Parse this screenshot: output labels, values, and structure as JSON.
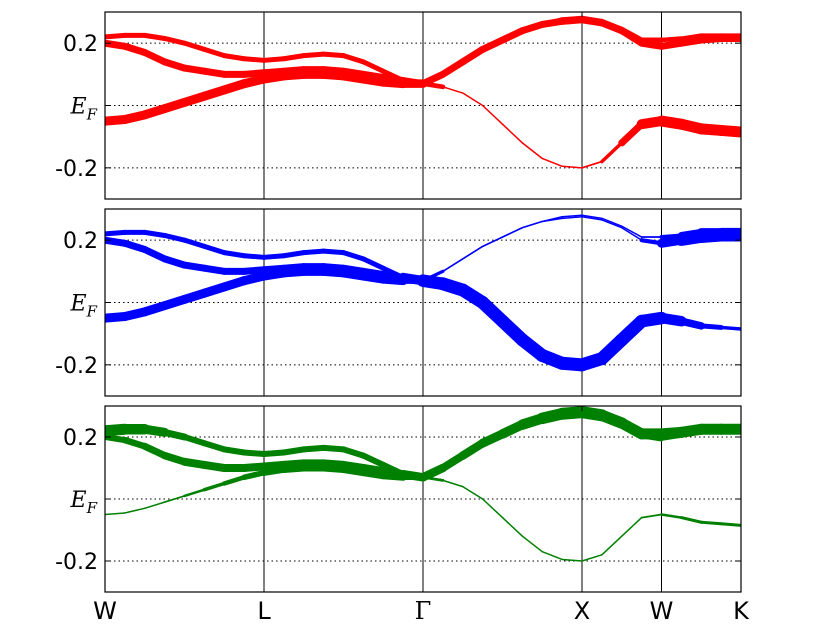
{
  "chart_data": {
    "type": "line",
    "x_ticks": [
      "W",
      "L",
      "Γ",
      "X",
      "W",
      "K"
    ],
    "y_ticks": [
      "0.2",
      "E_F",
      "-0.2"
    ],
    "y_tick_values": [
      0.2,
      0.0,
      -0.2
    ],
    "ylim": [
      -0.3,
      0.3
    ],
    "grid": "horizontal dotted",
    "panels": [
      {
        "color": "#ff0000",
        "series": [
          {
            "x": [
              0,
              0.25,
              0.5,
              0.75,
              1,
              1.25,
              1.5,
              1.75,
              2,
              2.25,
              2.5,
              2.75,
              3,
              3.25,
              3.5,
              3.75,
              4,
              4.25,
              4.5,
              4.75,
              5,
              5.25,
              5.5,
              5.75,
              6,
              6.25,
              6.5,
              6.75,
              7,
              7.25,
              7.5,
              7.75,
              8
            ],
            "y": [
              0.22,
              0.225,
              0.225,
              0.215,
              0.2,
              0.18,
              0.16,
              0.15,
              0.145,
              0.15,
              0.16,
              0.165,
              0.16,
              0.14,
              0.11,
              0.08,
              0.07,
              0.1,
              0.14,
              0.18,
              0.21,
              0.24,
              0.26,
              0.275,
              0.28,
              0.27,
              0.245,
              0.21,
              0.21,
              0.215,
              0.225,
              0.225,
              0.225
            ],
            "width": [
              5,
              5,
              5,
              5,
              5,
              5,
              5,
              5,
              5,
              5,
              5,
              5,
              5,
              5,
              5,
              5,
              5,
              5,
              5,
              5,
              5,
              5,
              5,
              5,
              5,
              5,
              5,
              5,
              5,
              4,
              4,
              4,
              4
            ]
          },
          {
            "x": [
              0,
              0.25,
              0.5,
              0.75,
              1,
              1.25,
              1.5,
              1.75,
              2,
              2.25,
              2.5,
              2.75,
              3,
              3.25,
              3.5,
              3.75,
              4,
              4.25,
              4.5,
              4.75,
              5,
              5.25,
              5.5,
              5.75,
              6,
              6.25,
              6.5,
              6.75,
              7,
              7.25,
              7.5,
              7.75,
              8
            ],
            "y": [
              0.2,
              0.19,
              0.17,
              0.14,
              0.12,
              0.11,
              0.1,
              0.1,
              0.105,
              0.11,
              0.115,
              0.115,
              0.11,
              0.1,
              0.09,
              0.08,
              0.07,
              0.1,
              0.14,
              0.18,
              0.21,
              0.24,
              0.26,
              0.27,
              0.275,
              0.265,
              0.24,
              0.2,
              0.19,
              0.2,
              0.21,
              0.215,
              0.215
            ],
            "width": [
              7,
              7,
              7,
              7,
              7,
              7,
              7,
              7,
              7,
              7,
              7,
              7,
              7,
              7,
              7,
              7,
              7,
              7,
              7,
              7,
              7,
              7,
              7,
              7,
              7,
              7,
              7,
              7,
              7,
              7,
              7,
              7,
              7
            ]
          },
          {
            "x": [
              0,
              0.25,
              0.5,
              0.75,
              1,
              1.25,
              1.5,
              1.75,
              2,
              2.25,
              2.5,
              2.75,
              3,
              3.25,
              3.5,
              3.75,
              4,
              4.25,
              4.5,
              4.75,
              5,
              5.25,
              5.5,
              5.75,
              6,
              6.25,
              6.5,
              6.75,
              7,
              7.25,
              7.5,
              7.75,
              8
            ],
            "y": [
              -0.05,
              -0.045,
              -0.03,
              -0.01,
              0.01,
              0.03,
              0.05,
              0.07,
              0.085,
              0.095,
              0.1,
              0.1,
              0.095,
              0.085,
              0.075,
              0.07,
              0.07,
              0.06,
              0.04,
              0.0,
              -0.06,
              -0.12,
              -0.17,
              -0.195,
              -0.2,
              -0.18,
              -0.12,
              -0.06,
              -0.05,
              -0.06,
              -0.075,
              -0.08,
              -0.085
            ],
            "width": [
              9,
              9,
              9,
              9,
              9,
              9,
              9,
              9,
              9,
              9,
              9,
              9,
              9,
              9,
              9,
              9,
              8,
              1.5,
              1.5,
              1.5,
              1.5,
              1.5,
              1.5,
              1.5,
              1.5,
              2,
              5,
              9,
              11,
              11,
              11,
              11,
              11
            ]
          }
        ]
      },
      {
        "color": "#0000ff",
        "series": [
          {
            "x": [
              0,
              0.25,
              0.5,
              0.75,
              1,
              1.25,
              1.5,
              1.75,
              2,
              2.25,
              2.5,
              2.75,
              3,
              3.25,
              3.5,
              3.75,
              4,
              4.25,
              4.5,
              4.75,
              5,
              5.25,
              5.5,
              5.75,
              6,
              6.25,
              6.5,
              6.75,
              7,
              7.25,
              7.5,
              7.75,
              8
            ],
            "y": [
              0.22,
              0.225,
              0.225,
              0.215,
              0.2,
              0.18,
              0.16,
              0.15,
              0.145,
              0.15,
              0.16,
              0.165,
              0.16,
              0.14,
              0.11,
              0.08,
              0.07,
              0.1,
              0.14,
              0.18,
              0.21,
              0.24,
              0.26,
              0.275,
              0.28,
              0.27,
              0.245,
              0.21,
              0.21,
              0.215,
              0.225,
              0.225,
              0.225
            ],
            "width": [
              5,
              5,
              5,
              5,
              5,
              5,
              5,
              5,
              5,
              5,
              5,
              5,
              5,
              5,
              5,
              5,
              5,
              1.5,
              1.5,
              1.5,
              1.5,
              1.5,
              1.5,
              1.5,
              1.5,
              1.5,
              1.5,
              1.5,
              2,
              6,
              8,
              9,
              9
            ]
          },
          {
            "x": [
              0,
              0.25,
              0.5,
              0.75,
              1,
              1.25,
              1.5,
              1.75,
              2,
              2.25,
              2.5,
              2.75,
              3,
              3.25,
              3.5,
              3.75,
              4,
              4.25,
              4.5,
              4.75,
              5,
              5.25,
              5.5,
              5.75,
              6,
              6.25,
              6.5,
              6.75,
              7,
              7.25,
              7.5,
              7.75,
              8
            ],
            "y": [
              0.2,
              0.19,
              0.17,
              0.14,
              0.12,
              0.11,
              0.1,
              0.1,
              0.105,
              0.11,
              0.115,
              0.115,
              0.11,
              0.1,
              0.09,
              0.08,
              0.07,
              0.06,
              0.04,
              0.0,
              -0.06,
              -0.12,
              -0.17,
              -0.195,
              -0.2,
              -0.18,
              -0.12,
              -0.06,
              -0.05,
              -0.06,
              -0.075,
              -0.08,
              -0.085
            ],
            "width": [
              7,
              7,
              7,
              7,
              7,
              7,
              7,
              7,
              7,
              7,
              7,
              7,
              7,
              7,
              7,
              7,
              12,
              13,
              13,
              13,
              13,
              13,
              13,
              13,
              13,
              13,
              13,
              13,
              12,
              9,
              6,
              4,
              3
            ]
          },
          {
            "x": [
              0,
              0.25,
              0.5,
              0.75,
              1,
              1.25,
              1.5,
              1.75,
              2,
              2.25,
              2.5,
              2.75,
              3,
              3.25,
              3.5,
              3.75,
              4,
              4.25,
              4.5,
              4.75,
              5,
              5.25,
              5.5,
              5.75,
              6,
              6.25,
              6.5,
              6.75,
              7,
              7.25,
              7.5,
              7.75,
              8
            ],
            "y": [
              -0.05,
              -0.045,
              -0.03,
              -0.01,
              0.01,
              0.03,
              0.05,
              0.07,
              0.085,
              0.095,
              0.1,
              0.1,
              0.095,
              0.085,
              0.075,
              0.07,
              0.07,
              0.1,
              0.14,
              0.18,
              0.21,
              0.24,
              0.26,
              0.27,
              0.275,
              0.265,
              0.24,
              0.2,
              0.19,
              0.2,
              0.21,
              0.215,
              0.215
            ],
            "width": [
              9,
              9,
              9,
              9,
              9,
              9,
              9,
              9,
              9,
              9,
              9,
              9,
              9,
              9,
              9,
              9,
              4,
              1.5,
              1.5,
              1.5,
              1.5,
              1.5,
              1.5,
              1.5,
              1.5,
              1.5,
              1.5,
              1.5,
              7,
              11,
              12,
              12,
              12
            ]
          }
        ]
      },
      {
        "color": "#008000",
        "series": [
          {
            "x": [
              0,
              0.25,
              0.5,
              0.75,
              1,
              1.25,
              1.5,
              1.75,
              2,
              2.25,
              2.5,
              2.75,
              3,
              3.25,
              3.5,
              3.75,
              4,
              4.25,
              4.5,
              4.75,
              5,
              5.25,
              5.5,
              5.75,
              6,
              6.25,
              6.5,
              6.75,
              7,
              7.25,
              7.5,
              7.75,
              8
            ],
            "y": [
              0.22,
              0.225,
              0.225,
              0.215,
              0.2,
              0.18,
              0.16,
              0.15,
              0.145,
              0.15,
              0.16,
              0.165,
              0.16,
              0.14,
              0.11,
              0.08,
              0.07,
              0.1,
              0.14,
              0.18,
              0.21,
              0.24,
              0.26,
              0.275,
              0.28,
              0.27,
              0.245,
              0.21,
              0.21,
              0.215,
              0.225,
              0.225,
              0.225
            ],
            "width": [
              11,
              11,
              10,
              8,
              6,
              6,
              6,
              6,
              6,
              6,
              6,
              6,
              6,
              6,
              6,
              6,
              8,
              8,
              8,
              9,
              9,
              10,
              11,
              12,
              12,
              12,
              11,
              11,
              11,
              11,
              11,
              11,
              11
            ]
          },
          {
            "x": [
              0,
              0.25,
              0.5,
              0.75,
              1,
              1.25,
              1.5,
              1.75,
              2,
              2.25,
              2.5,
              2.75,
              3,
              3.25,
              3.5,
              3.75,
              4,
              4.25,
              4.5,
              4.75,
              5,
              5.25,
              5.5,
              5.75,
              6,
              6.25,
              6.5,
              6.75,
              7,
              7.25,
              7.5,
              7.75,
              8
            ],
            "y": [
              0.2,
              0.19,
              0.17,
              0.14,
              0.12,
              0.11,
              0.1,
              0.1,
              0.105,
              0.11,
              0.115,
              0.115,
              0.11,
              0.1,
              0.09,
              0.08,
              0.07,
              0.1,
              0.14,
              0.18,
              0.21,
              0.24,
              0.26,
              0.27,
              0.275,
              0.265,
              0.24,
              0.2,
              0.19,
              0.2,
              0.21,
              0.215,
              0.215
            ],
            "width": [
              6,
              6,
              7,
              7,
              8,
              8,
              8,
              8,
              8,
              8,
              8,
              8,
              8,
              8,
              8,
              8,
              9,
              8,
              7,
              6,
              5,
              5,
              5,
              5,
              5,
              5,
              5,
              4,
              1.5,
              1.5,
              1.5,
              1.5,
              1.5
            ]
          },
          {
            "x": [
              0,
              0.25,
              0.5,
              0.75,
              1,
              1.25,
              1.5,
              1.75,
              2,
              2.25,
              2.5,
              2.75,
              3,
              3.25,
              3.5,
              3.75,
              4,
              4.25,
              4.5,
              4.75,
              5,
              5.25,
              5.5,
              5.75,
              6,
              6.25,
              6.5,
              6.75,
              7,
              7.25,
              7.5,
              7.75,
              8
            ],
            "y": [
              -0.05,
              -0.045,
              -0.03,
              -0.01,
              0.01,
              0.03,
              0.05,
              0.07,
              0.085,
              0.095,
              0.1,
              0.1,
              0.095,
              0.085,
              0.075,
              0.07,
              0.07,
              0.06,
              0.04,
              0.0,
              -0.06,
              -0.12,
              -0.17,
              -0.195,
              -0.2,
              -0.18,
              -0.12,
              -0.06,
              -0.05,
              -0.06,
              -0.075,
              -0.08,
              -0.085
            ],
            "width": [
              1.5,
              1.5,
              1.5,
              1.5,
              2,
              3,
              4,
              5,
              6,
              7,
              7,
              7,
              7,
              7,
              7,
              7,
              4,
              1.5,
              1.5,
              1.5,
              1.5,
              1.5,
              1.5,
              1.5,
              1.5,
              1.5,
              1.5,
              1.5,
              2,
              3,
              3,
              3,
              3
            ]
          }
        ]
      }
    ]
  }
}
